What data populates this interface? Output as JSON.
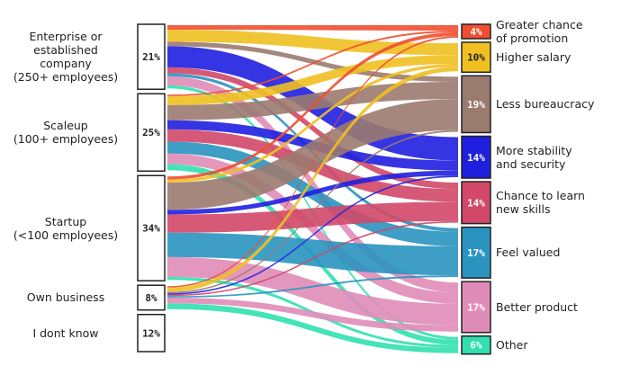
{
  "chart_data": {
    "type": "sankey",
    "title": "",
    "sources": [
      {
        "label": "Enterprise or\nestablished\ncompany\n(250+ employees)",
        "value_label": "21%",
        "value": 21
      },
      {
        "label": "Scaleup\n(100+ employees)",
        "value_label": "25%",
        "value": 25
      },
      {
        "label": "Startup\n(<100 employees)",
        "value_label": "34%",
        "value": 34
      },
      {
        "label": "Own business",
        "value_label": "8%",
        "value": 8
      },
      {
        "label": "I dont know",
        "value_label": "12%",
        "value": 12
      }
    ],
    "targets": [
      {
        "label": "Greater chance\nof promotion",
        "value_label": "4%",
        "value": 4,
        "color": "#f04e30",
        "text_color": "#ffffff"
      },
      {
        "label": "Higher salary",
        "value_label": "10%",
        "value": 10,
        "color": "#f0c020",
        "text_color": "#222222"
      },
      {
        "label": "Less bureaucracy",
        "value_label": "19%",
        "value": 19,
        "color": "#9b7a70",
        "text_color": "#ffffff"
      },
      {
        "label": "More stability\nand security",
        "value_label": "14%",
        "value": 14,
        "color": "#1f1fe0",
        "text_color": "#ffffff"
      },
      {
        "label": "Chance to learn\nnew skills",
        "value_label": "14%",
        "value": 14,
        "color": "#d24868",
        "text_color": "#ffffff"
      },
      {
        "label": "Feel valued",
        "value_label": "17%",
        "value": 17,
        "color": "#2a93c0",
        "text_color": "#ffffff"
      },
      {
        "label": "Better product",
        "value_label": "17%",
        "value": 17,
        "color": "#e08cb8",
        "text_color": "#ffffff"
      },
      {
        "label": "Other",
        "value_label": "6%",
        "value": 6,
        "color": "#30e0b0",
        "text_color": "#ffffff"
      }
    ],
    "flows": [
      {
        "source": 0,
        "target": 0,
        "value": 1.5
      },
      {
        "source": 0,
        "target": 1,
        "value": 4
      },
      {
        "source": 0,
        "target": 2,
        "value": 1.5
      },
      {
        "source": 0,
        "target": 3,
        "value": 7
      },
      {
        "source": 0,
        "target": 4,
        "value": 2
      },
      {
        "source": 0,
        "target": 5,
        "value": 1
      },
      {
        "source": 0,
        "target": 6,
        "value": 3
      },
      {
        "source": 0,
        "target": 7,
        "value": 1
      },
      {
        "source": 1,
        "target": 0,
        "value": 0.5
      },
      {
        "source": 1,
        "target": 1,
        "value": 3
      },
      {
        "source": 1,
        "target": 2,
        "value": 5
      },
      {
        "source": 1,
        "target": 3,
        "value": 3
      },
      {
        "source": 1,
        "target": 4,
        "value": 4
      },
      {
        "source": 1,
        "target": 5,
        "value": 4
      },
      {
        "source": 1,
        "target": 6,
        "value": 3.5
      },
      {
        "source": 1,
        "target": 7,
        "value": 2
      },
      {
        "source": 2,
        "target": 0,
        "value": 1
      },
      {
        "source": 2,
        "target": 1,
        "value": 1
      },
      {
        "source": 2,
        "target": 2,
        "value": 9
      },
      {
        "source": 2,
        "target": 3,
        "value": 1.5
      },
      {
        "source": 2,
        "target": 4,
        "value": 6
      },
      {
        "source": 2,
        "target": 5,
        "value": 8
      },
      {
        "source": 2,
        "target": 6,
        "value": 6.5
      },
      {
        "source": 2,
        "target": 7,
        "value": 1
      },
      {
        "source": 3,
        "target": 0,
        "value": 0.5
      },
      {
        "source": 3,
        "target": 1,
        "value": 1.5
      },
      {
        "source": 3,
        "target": 2,
        "value": 0.5
      },
      {
        "source": 3,
        "target": 3,
        "value": 0.5
      },
      {
        "source": 3,
        "target": 4,
        "value": 0.5
      },
      {
        "source": 3,
        "target": 5,
        "value": 0.5
      },
      {
        "source": 3,
        "target": 6,
        "value": 2
      },
      {
        "source": 3,
        "target": 7,
        "value": 2
      }
    ]
  }
}
